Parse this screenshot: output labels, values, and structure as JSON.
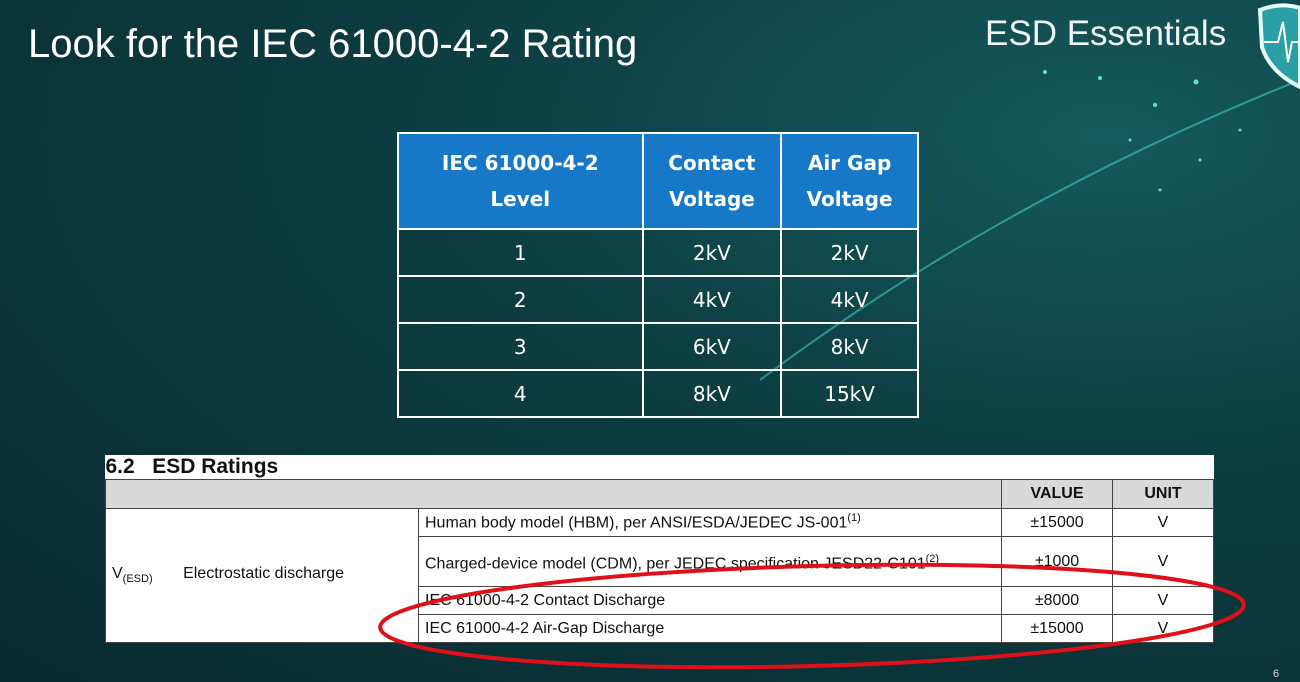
{
  "slide": {
    "title": "Look for the IEC 61000-4-2 Rating",
    "brand": "ESD Essentials",
    "page_number": "6",
    "accent_color": "#1878c8",
    "highlight_color": "#e0101a"
  },
  "iec_table": {
    "headers": [
      [
        "IEC 61000-4-2",
        "Level"
      ],
      [
        "Contact",
        "Voltage"
      ],
      [
        "Air Gap",
        "Voltage"
      ]
    ],
    "rows": [
      [
        "1",
        "2kV",
        "2kV"
      ],
      [
        "2",
        "4kV",
        "4kV"
      ],
      [
        "3",
        "6kV",
        "8kV"
      ],
      [
        "4",
        "8kV",
        "15kV"
      ]
    ]
  },
  "esd_table": {
    "caption": "6.2   ESD Ratings",
    "headers": {
      "value": "VALUE",
      "unit": "UNIT"
    },
    "symbol": "V",
    "symbol_sub": "(ESD)",
    "parameter": "Electrostatic discharge",
    "rows": [
      {
        "condition": "Human body model (HBM), per ANSI/ESDA/JEDEC JS-001",
        "note": "(1)",
        "value": "±15000",
        "unit": "V"
      },
      {
        "condition": "Charged-device model (CDM), per JEDEC specification JESD22-C101",
        "note": "(2)",
        "value": "±1000",
        "unit": "V"
      },
      {
        "condition": "IEC 61000-4-2 Contact Discharge",
        "note": "",
        "value": "±8000",
        "unit": "V"
      },
      {
        "condition": "IEC 61000-4-2 Air-Gap Discharge",
        "note": "",
        "value": "±15000",
        "unit": "V"
      }
    ]
  }
}
